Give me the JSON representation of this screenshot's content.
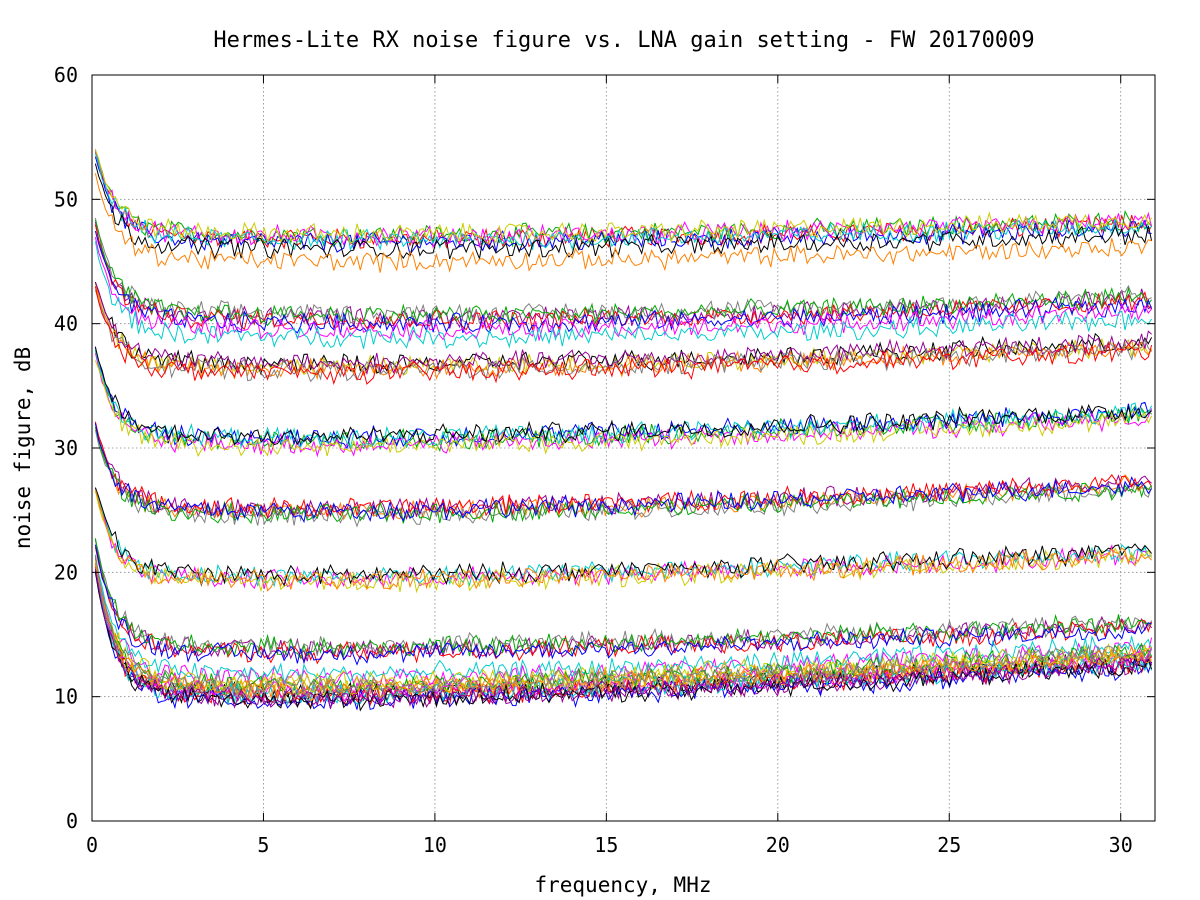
{
  "chart_data": {
    "type": "line",
    "title": "Hermes-Lite RX noise figure vs. LNA gain setting - FW 20170009",
    "xlabel": "frequency, MHz",
    "ylabel": "noise figure, dB",
    "xlim": [
      0,
      31
    ],
    "ylim": [
      0,
      60
    ],
    "xticks": [
      0,
      5,
      10,
      15,
      20,
      25,
      30
    ],
    "yticks": [
      0,
      10,
      20,
      30,
      40,
      50,
      60
    ],
    "grid": true,
    "legend": "none",
    "x_range": [
      0.1,
      30.9
    ],
    "colors": [
      "#ff0000",
      "#00aa00",
      "#0000ff",
      "#ff00ff",
      "#00cccc",
      "#cccc00",
      "#000000",
      "#ff8000",
      "#990099",
      "#808080"
    ],
    "groups": [
      {
        "start": 55.0,
        "trough": 46.8,
        "trough_x": 9.0,
        "end": 48.0,
        "series_offsets": [
          0.0,
          0.3,
          -0.3,
          0.2,
          -0.1,
          0.4,
          -0.8,
          -1.8
        ]
      },
      {
        "start": 49.5,
        "trough": 40.5,
        "trough_x": 12.0,
        "end": 42.0,
        "series_offsets": [
          0.0,
          0.3,
          -0.2,
          0.2,
          -0.5,
          -1.0,
          -1.6
        ]
      },
      {
        "start": 44.5,
        "trough": 36.5,
        "trough_x": 7.0,
        "end": 38.3,
        "series_offsets": [
          0.0,
          0.2,
          -0.2,
          0.3,
          -0.3,
          -0.5
        ]
      },
      {
        "start": 39.0,
        "trough": 30.5,
        "trough_x": 6.0,
        "end": 32.7,
        "series_offsets": [
          0.0,
          0.3,
          -0.3,
          0.2,
          -0.4,
          0.4
        ]
      },
      {
        "start": 33.0,
        "trough": 24.8,
        "trough_x": 6.0,
        "end": 27.0,
        "series_offsets": [
          0.0,
          0.2,
          -0.3,
          0.3,
          -0.2,
          0.1
        ]
      },
      {
        "start": 28.0,
        "trough": 19.4,
        "trough_x": 6.0,
        "end": 21.5,
        "series_offsets": [
          0.0,
          0.2,
          -0.2,
          0.3,
          -0.1
        ]
      },
      {
        "start": 24.0,
        "trough": 13.7,
        "trough_x": 6.0,
        "end": 15.8,
        "series_offsets": [
          0.0,
          0.3,
          -0.2,
          0.2,
          -0.3
        ]
      },
      {
        "start": 23.0,
        "trough": 11.5,
        "trough_x": 7.0,
        "end": 14.0,
        "series_offsets": [
          0.0,
          0.3,
          -0.3
        ]
      },
      {
        "start": 22.5,
        "trough": 10.2,
        "trough_x": 6.0,
        "end": 13.0,
        "series_offsets": [
          0.0,
          0.4,
          -0.4,
          0.2,
          -0.2,
          0.6,
          -0.6,
          0.1,
          -0.1,
          0.5,
          -0.5,
          0.3,
          -0.3,
          0.7
        ]
      }
    ]
  }
}
